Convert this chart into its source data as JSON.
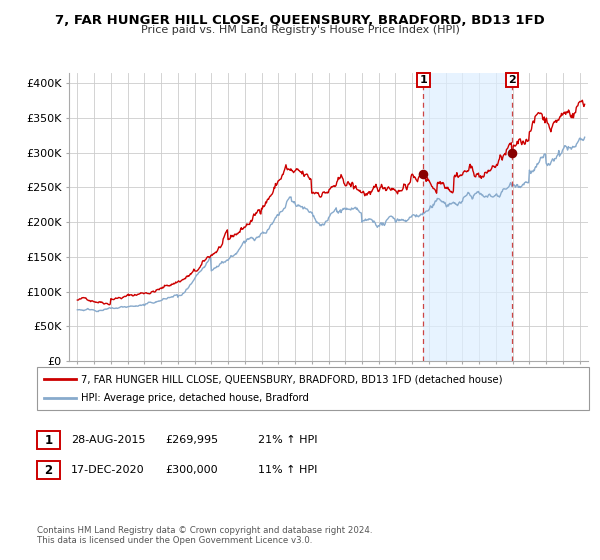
{
  "title": "7, FAR HUNGER HILL CLOSE, QUEENSBURY, BRADFORD, BD13 1FD",
  "subtitle": "Price paid vs. HM Land Registry's House Price Index (HPI)",
  "legend_line1": "7, FAR HUNGER HILL CLOSE, QUEENSBURY, BRADFORD, BD13 1FD (detached house)",
  "legend_line2": "HPI: Average price, detached house, Bradford",
  "annotation1_label": "1",
  "annotation1_date": "28-AUG-2015",
  "annotation1_price": "£269,995",
  "annotation1_hpi": "21% ↑ HPI",
  "annotation1_year": 2015.66,
  "annotation1_value": 269995,
  "annotation2_label": "2",
  "annotation2_date": "17-DEC-2020",
  "annotation2_price": "£300,000",
  "annotation2_hpi": "11% ↑ HPI",
  "annotation2_year": 2020.96,
  "annotation2_value": 300000,
  "red_line_color": "#cc0000",
  "blue_line_color": "#88aacc",
  "shade_color": "#ddeeff",
  "marker_color": "#880000",
  "vline_color": "#cc4444",
  "background_color": "#ffffff",
  "grid_color": "#cccccc",
  "yticks": [
    0,
    50000,
    100000,
    150000,
    200000,
    250000,
    300000,
    350000,
    400000
  ],
  "ytick_labels": [
    "£0",
    "£50K",
    "£100K",
    "£150K",
    "£200K",
    "£250K",
    "£300K",
    "£350K",
    "£400K"
  ],
  "xlim": [
    1994.5,
    2025.5
  ],
  "ylim": [
    0,
    415000
  ],
  "footer1": "Contains HM Land Registry data © Crown copyright and database right 2024.",
  "footer2": "This data is licensed under the Open Government Licence v3.0."
}
